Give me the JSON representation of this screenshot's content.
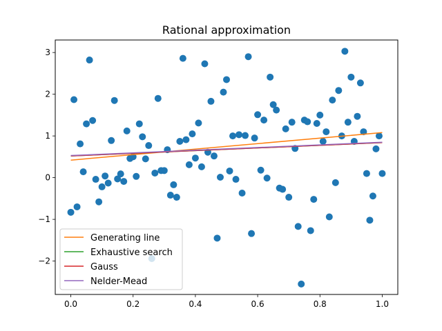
{
  "chart_data": {
    "type": "scatter",
    "title": "Rational approximation",
    "xlabel": "",
    "ylabel": "",
    "xlim": [
      -0.05,
      1.05
    ],
    "ylim": [
      -2.8,
      3.3
    ],
    "xticks": [
      "0.0",
      "0.2",
      "0.4",
      "0.6",
      "0.8",
      "1.0"
    ],
    "xtick_values": [
      0.0,
      0.2,
      0.4,
      0.6,
      0.8,
      1.0
    ],
    "yticks": [
      "−2",
      "−1",
      "0",
      "1",
      "2",
      "3"
    ],
    "ytick_values": [
      -2,
      -1,
      0,
      1,
      2,
      3
    ],
    "grid": false,
    "legend_position": "lower-left",
    "scatter": {
      "color": "#1f77b4",
      "points": [
        [
          0.0,
          -0.83
        ],
        [
          0.01,
          1.87
        ],
        [
          0.02,
          -0.7
        ],
        [
          0.03,
          0.81
        ],
        [
          0.04,
          0.14
        ],
        [
          0.05,
          1.29
        ],
        [
          0.06,
          2.82
        ],
        [
          0.07,
          1.37
        ],
        [
          0.08,
          -0.04
        ],
        [
          0.09,
          -0.58
        ],
        [
          0.1,
          -0.22
        ],
        [
          0.11,
          0.04
        ],
        [
          0.12,
          -0.13
        ],
        [
          0.13,
          0.89
        ],
        [
          0.14,
          1.85
        ],
        [
          0.15,
          -0.03
        ],
        [
          0.16,
          0.09
        ],
        [
          0.17,
          -0.09
        ],
        [
          0.18,
          1.12
        ],
        [
          0.19,
          0.46
        ],
        [
          0.2,
          0.5
        ],
        [
          0.21,
          0.03
        ],
        [
          0.22,
          1.29
        ],
        [
          0.23,
          0.98
        ],
        [
          0.24,
          0.45
        ],
        [
          0.25,
          0.77
        ],
        [
          0.26,
          -1.94
        ],
        [
          0.27,
          0.11
        ],
        [
          0.28,
          1.9
        ],
        [
          0.29,
          0.17
        ],
        [
          0.3,
          0.17
        ],
        [
          0.31,
          0.67
        ],
        [
          0.32,
          -0.42
        ],
        [
          0.33,
          -0.17
        ],
        [
          0.34,
          -0.47
        ],
        [
          0.35,
          0.87
        ],
        [
          0.36,
          2.86
        ],
        [
          0.37,
          0.91
        ],
        [
          0.38,
          0.31
        ],
        [
          0.39,
          1.05
        ],
        [
          0.4,
          0.47
        ],
        [
          0.41,
          1.31
        ],
        [
          0.42,
          0.26
        ],
        [
          0.43,
          2.73
        ],
        [
          0.44,
          0.61
        ],
        [
          0.45,
          1.83
        ],
        [
          0.46,
          0.52
        ],
        [
          0.47,
          -1.45
        ],
        [
          0.48,
          0.01
        ],
        [
          0.49,
          2.05
        ],
        [
          0.5,
          2.35
        ],
        [
          0.51,
          0.16
        ],
        [
          0.52,
          1.0
        ],
        [
          0.53,
          -0.04
        ],
        [
          0.54,
          1.03
        ],
        [
          0.55,
          -0.37
        ],
        [
          0.56,
          1.01
        ],
        [
          0.57,
          2.9
        ],
        [
          0.58,
          -1.34
        ],
        [
          0.59,
          0.95
        ],
        [
          0.6,
          1.51
        ],
        [
          0.61,
          0.18
        ],
        [
          0.62,
          1.38
        ],
        [
          0.63,
          -0.01
        ],
        [
          0.64,
          2.41
        ],
        [
          0.65,
          1.75
        ],
        [
          0.66,
          1.62
        ],
        [
          0.67,
          -0.25
        ],
        [
          0.68,
          -0.28
        ],
        [
          0.69,
          1.17
        ],
        [
          0.7,
          -0.47
        ],
        [
          0.71,
          1.33
        ],
        [
          0.72,
          0.7
        ],
        [
          0.73,
          -1.17
        ],
        [
          0.74,
          -2.55
        ],
        [
          0.75,
          1.38
        ],
        [
          0.76,
          1.34
        ],
        [
          0.77,
          -1.27
        ],
        [
          0.78,
          -0.52
        ],
        [
          0.79,
          1.3
        ],
        [
          0.8,
          1.5
        ],
        [
          0.81,
          0.87
        ],
        [
          0.82,
          1.1
        ],
        [
          0.83,
          -0.94
        ],
        [
          0.84,
          1.86
        ],
        [
          0.85,
          -0.12
        ],
        [
          0.86,
          2.09
        ],
        [
          0.87,
          1.0
        ],
        [
          0.88,
          3.03
        ],
        [
          0.89,
          1.33
        ],
        [
          0.9,
          2.41
        ],
        [
          0.91,
          0.87
        ],
        [
          0.92,
          1.47
        ],
        [
          0.93,
          2.27
        ],
        [
          0.94,
          1.1
        ],
        [
          0.95,
          0.1
        ],
        [
          0.96,
          -1.02
        ],
        [
          0.97,
          -0.44
        ],
        [
          0.98,
          0.69
        ],
        [
          0.99,
          1.0
        ],
        [
          1.0,
          0.1
        ]
      ]
    },
    "series": [
      {
        "name": "Generating line",
        "color": "#ff7f0e",
        "x": [
          0.0,
          1.0
        ],
        "y": [
          0.42,
          1.08
        ]
      },
      {
        "name": "Exhaustive search",
        "color": "#2ca02c",
        "x": [
          0.0,
          1.0
        ],
        "y": [
          0.52,
          0.84
        ]
      },
      {
        "name": "Gauss",
        "color": "#d62728",
        "x": [
          0.0,
          1.0
        ],
        "y": [
          0.52,
          0.84
        ]
      },
      {
        "name": "Nelder-Mead",
        "color": "#9467bd",
        "x": [
          0.0,
          1.0
        ],
        "y": [
          0.53,
          0.85
        ]
      }
    ]
  }
}
